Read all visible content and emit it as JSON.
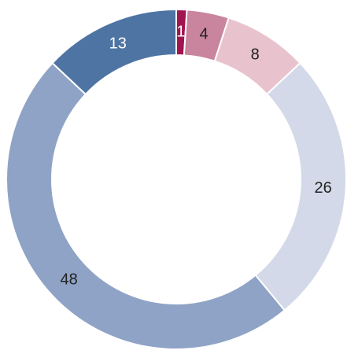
{
  "chart_data": {
    "type": "donut",
    "values": [
      1,
      4,
      8,
      26,
      48,
      13
    ],
    "colors": [
      "#a0154f",
      "#c9849e",
      "#e8c3ce",
      "#d3d9e8",
      "#8fa3c6",
      "#4e74a3"
    ]
  }
}
